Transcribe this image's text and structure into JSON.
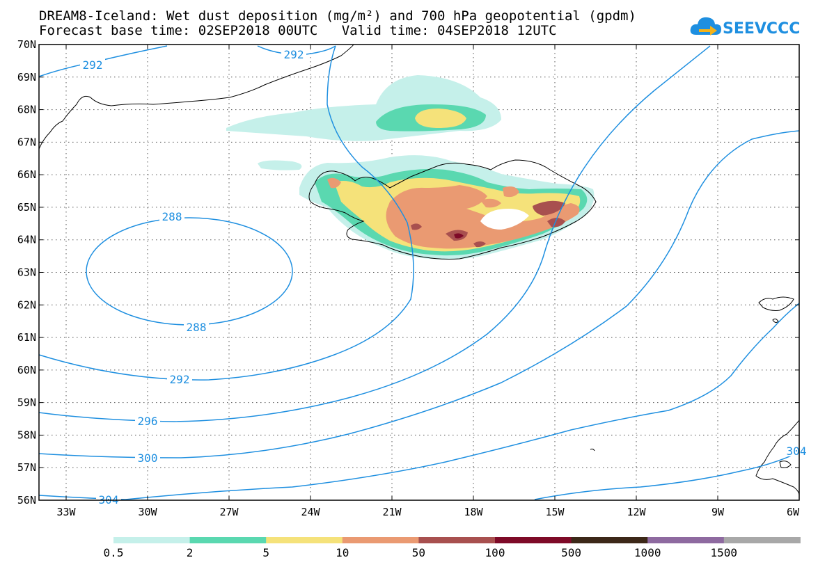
{
  "title_line1": "DREAM8-Iceland: Wet dust deposition (mg/m²) and 700 hPa geopotential (gpdm)",
  "forecast_base_label": "Forecast base time: 02SEP2018 00UTC",
  "valid_time_label": "Valid time: 04SEP2018 12UTC",
  "logo_text": "SEEVCCC",
  "lat_labels": [
    "70N",
    "69N",
    "68N",
    "67N",
    "66N",
    "65N",
    "64N",
    "63N",
    "62N",
    "61N",
    "60N",
    "59N",
    "58N",
    "57N",
    "56N"
  ],
  "lon_labels": [
    "33W",
    "30W",
    "27W",
    "24W",
    "21W",
    "18W",
    "15W",
    "12W",
    "9W",
    "6W"
  ],
  "contour_labels": [
    "292",
    "292",
    "288",
    "288",
    "292",
    "296",
    "300",
    "304",
    "304"
  ],
  "legend": {
    "colors": [
      "#c5f0ea",
      "#5ad8b0",
      "#f5e27a",
      "#ea9a72",
      "#a8504f",
      "#7e0a28",
      "#3c2818",
      "#8e6aa0",
      "#a8a8a8"
    ],
    "labels": [
      "0.5",
      "2",
      "5",
      "10",
      "50",
      "100",
      "500",
      "1000",
      "1500"
    ]
  },
  "colors": {
    "contour": "#1e8fe0",
    "grid": "#555555"
  }
}
